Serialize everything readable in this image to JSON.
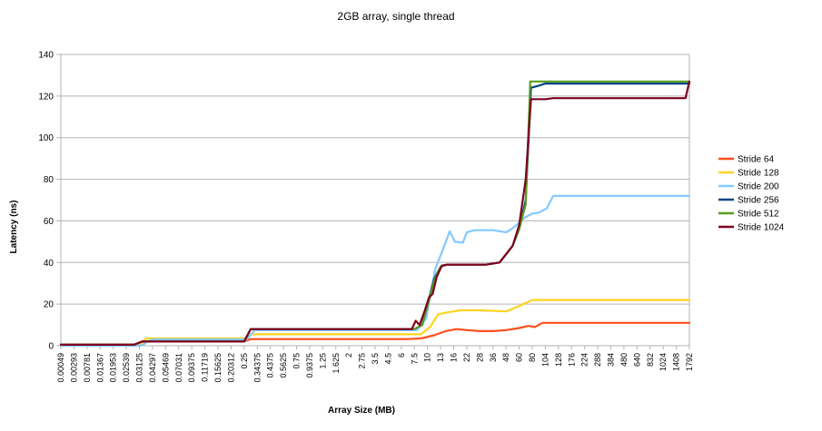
{
  "chart_data": {
    "type": "line",
    "title": "2GB array, single thread",
    "xlabel": "Array Size (MB)",
    "ylabel": "Latency (ns)",
    "ylim": [
      0,
      140
    ],
    "yticks": [
      0,
      20,
      40,
      60,
      80,
      100,
      120,
      140
    ],
    "grid": true,
    "legend_position": "right",
    "x_tick_labels": [
      "0.00049",
      "0.00293",
      "0.00781",
      "0.01367",
      "0.01953",
      "0.02539",
      "0.03125",
      "0.04297",
      "0.05469",
      "0.07031",
      "0.09375",
      "0.11719",
      "0.15625",
      "0.20312",
      "0.25",
      "0.34375",
      "0.4375",
      "0.5625",
      "0.75",
      "0.9375",
      "1.25",
      "1.625",
      "2",
      "2.75",
      "3.5",
      "4.5",
      "6",
      "7.5",
      "10",
      "13",
      "16",
      "22",
      "28",
      "36",
      "48",
      "60",
      "80",
      "104",
      "128",
      "176",
      "224",
      "288",
      "384",
      "480",
      "640",
      "832",
      "1024",
      "1408",
      "1792"
    ],
    "series": [
      {
        "name": "Stride 64",
        "color": "#ff4f1f",
        "points": [
          [
            0,
            0.5
          ],
          [
            5.5,
            0.5
          ],
          [
            6.1,
            1.5
          ],
          [
            6.5,
            2
          ],
          [
            14,
            2
          ],
          [
            14.5,
            3.2
          ],
          [
            26.5,
            3.2
          ],
          [
            27.5,
            3.5
          ],
          [
            28.5,
            5
          ],
          [
            29.4,
            7
          ],
          [
            30.2,
            8
          ],
          [
            31,
            7.5
          ],
          [
            32,
            7
          ],
          [
            33,
            7
          ],
          [
            34,
            7.5
          ],
          [
            35,
            8.5
          ],
          [
            35.7,
            9.5
          ],
          [
            36.2,
            9
          ],
          [
            36.8,
            11
          ],
          [
            38,
            11
          ],
          [
            48,
            11
          ]
        ]
      },
      {
        "name": "Stride 128",
        "color": "#ffd320",
        "points": [
          [
            0,
            0.5
          ],
          [
            6,
            0.5
          ],
          [
            6.5,
            3.5
          ],
          [
            14,
            3.5
          ],
          [
            14.6,
            5.5
          ],
          [
            27.5,
            5.5
          ],
          [
            28.2,
            9
          ],
          [
            28.8,
            15
          ],
          [
            29.5,
            16
          ],
          [
            30.5,
            17
          ],
          [
            32,
            17
          ],
          [
            34,
            16.5
          ],
          [
            35,
            19
          ],
          [
            36,
            22
          ],
          [
            48,
            22
          ]
        ]
      },
      {
        "name": "Stride 200",
        "color": "#83caff",
        "points": [
          [
            0,
            0
          ],
          [
            6,
            0
          ],
          [
            6.3,
            0.5
          ],
          [
            6.6,
            2
          ],
          [
            7,
            3
          ],
          [
            14.2,
            3
          ],
          [
            14.8,
            7.5
          ],
          [
            27.2,
            7.5
          ],
          [
            27.9,
            13
          ],
          [
            28.2,
            24
          ],
          [
            28.6,
            37
          ],
          [
            29.1,
            45
          ],
          [
            29.7,
            55
          ],
          [
            30.1,
            50
          ],
          [
            30.7,
            49.5
          ],
          [
            31,
            54.5
          ],
          [
            31.6,
            55.5
          ],
          [
            32.2,
            55.5
          ],
          [
            33,
            55.5
          ],
          [
            34,
            54.5
          ],
          [
            34.4,
            56
          ],
          [
            34.8,
            58
          ],
          [
            35.4,
            61.5
          ],
          [
            36,
            63.5
          ],
          [
            36.5,
            64
          ],
          [
            37.1,
            66
          ],
          [
            37.6,
            72
          ],
          [
            48,
            72
          ]
        ]
      },
      {
        "name": "Stride 256",
        "color": "#004586",
        "points": [
          [
            0,
            0.5
          ],
          [
            5.6,
            0.5
          ],
          [
            6.2,
            2
          ],
          [
            14,
            2
          ],
          [
            14.5,
            8
          ],
          [
            27,
            8
          ],
          [
            27.6,
            10
          ],
          [
            28,
            20
          ],
          [
            28.5,
            32
          ],
          [
            29,
            38
          ],
          [
            29.5,
            39
          ],
          [
            32.5,
            39
          ],
          [
            33.5,
            40
          ],
          [
            34.5,
            48
          ],
          [
            35,
            56
          ],
          [
            35.5,
            70
          ],
          [
            35.9,
            124
          ],
          [
            36.5,
            125
          ],
          [
            37,
            126
          ],
          [
            48,
            126
          ]
        ]
      },
      {
        "name": "Stride 512",
        "color": "#579d1c",
        "points": [
          [
            0,
            0.5
          ],
          [
            5.6,
            0.5
          ],
          [
            6.2,
            2
          ],
          [
            14,
            2
          ],
          [
            14.5,
            8
          ],
          [
            27,
            8
          ],
          [
            27.6,
            10
          ],
          [
            28,
            19
          ],
          [
            28.5,
            31
          ],
          [
            29,
            38
          ],
          [
            29.5,
            39
          ],
          [
            32.5,
            39
          ],
          [
            33.5,
            40
          ],
          [
            34.5,
            48
          ],
          [
            35,
            56
          ],
          [
            35.5,
            68
          ],
          [
            35.85,
            127
          ],
          [
            37,
            127
          ],
          [
            48,
            127
          ]
        ]
      },
      {
        "name": "Stride 1024",
        "color": "#7e0021",
        "points": [
          [
            0,
            0.5
          ],
          [
            5.6,
            0.5
          ],
          [
            6.2,
            2
          ],
          [
            14,
            2
          ],
          [
            14.5,
            8
          ],
          [
            26.8,
            8
          ],
          [
            27.1,
            12
          ],
          [
            27.4,
            10
          ],
          [
            27.8,
            17
          ],
          [
            28.1,
            23
          ],
          [
            28.4,
            25
          ],
          [
            28.7,
            33
          ],
          [
            29.1,
            38.5
          ],
          [
            29.5,
            39
          ],
          [
            32.5,
            39
          ],
          [
            33.5,
            40
          ],
          [
            34.5,
            48
          ],
          [
            35,
            58
          ],
          [
            35.5,
            80
          ],
          [
            35.9,
            118.5
          ],
          [
            37,
            118.5
          ],
          [
            37.6,
            119
          ],
          [
            47.7,
            119
          ],
          [
            48,
            127
          ]
        ]
      }
    ]
  }
}
